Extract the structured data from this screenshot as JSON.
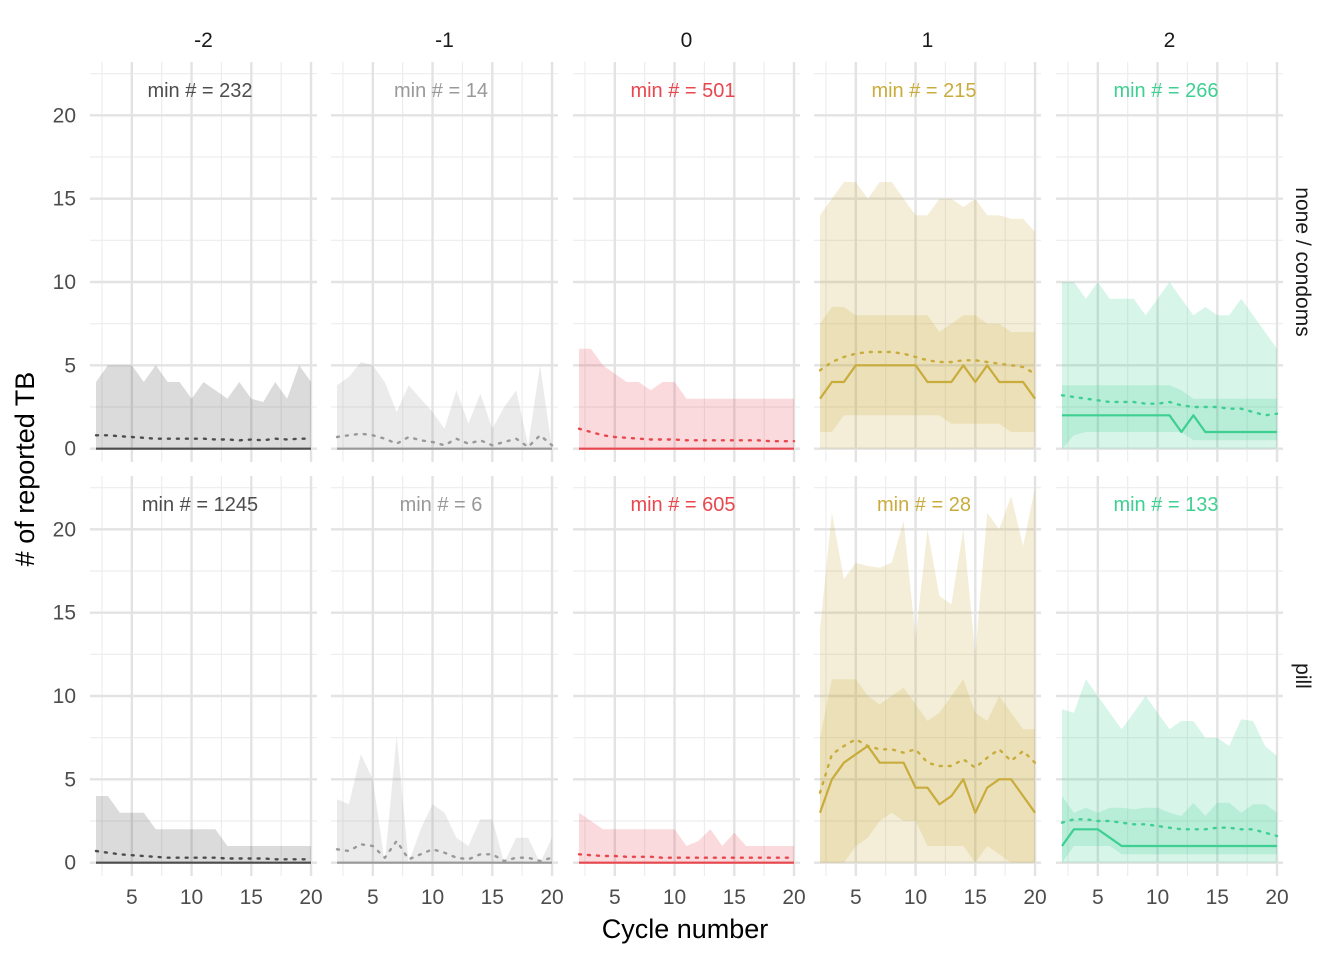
{
  "chart_data": {
    "type": "area",
    "xlabel": "Cycle number",
    "ylabel": "# of reported TB",
    "xlim": [
      1.5,
      20.5
    ],
    "ylim": [
      -0.8,
      23.2
    ],
    "x_ticks": [
      5,
      10,
      15,
      20
    ],
    "y_ticks": [
      0,
      5,
      10,
      15,
      20
    ],
    "grid": true,
    "x": [
      2,
      3,
      4,
      5,
      6,
      7,
      8,
      9,
      10,
      11,
      12,
      13,
      14,
      15,
      16,
      17,
      18,
      19,
      20
    ],
    "col_labels": [
      "-2",
      "-1",
      "0",
      "1",
      "2"
    ],
    "row_labels": [
      "none / condoms",
      "pill"
    ],
    "col_colors": [
      "#4d4d4d",
      "#999999",
      "#e8474e",
      "#c9ac3c",
      "#3ecf92"
    ],
    "panels": [
      {
        "row": 0,
        "col": 0,
        "annotation": "min # = 232",
        "outer_upper": [
          4,
          5,
          5,
          5,
          4,
          5,
          4,
          4,
          3,
          4,
          3.5,
          3,
          4,
          3,
          2.8,
          4,
          3,
          5,
          4
        ],
        "outer_lower": [
          0,
          0,
          0,
          0,
          0,
          0,
          0,
          0,
          0,
          0,
          0,
          0,
          0,
          0,
          0,
          0,
          0,
          0,
          0
        ],
        "inner_upper": [
          0,
          0,
          0,
          0,
          0,
          0,
          0,
          0,
          0,
          0,
          0,
          0,
          0,
          0,
          0,
          0,
          0,
          0,
          0
        ],
        "inner_lower": [
          0,
          0,
          0,
          0,
          0,
          0,
          0,
          0,
          0,
          0,
          0,
          0,
          0,
          0,
          0,
          0,
          0,
          0,
          0
        ],
        "median": [
          0,
          0,
          0,
          0,
          0,
          0,
          0,
          0,
          0,
          0,
          0,
          0,
          0,
          0,
          0,
          0,
          0,
          0,
          0
        ],
        "mean": [
          0.8,
          0.8,
          0.75,
          0.7,
          0.65,
          0.6,
          0.6,
          0.6,
          0.6,
          0.6,
          0.55,
          0.55,
          0.5,
          0.55,
          0.5,
          0.6,
          0.55,
          0.6,
          0.6
        ]
      },
      {
        "row": 0,
        "col": 1,
        "annotation": "min # = 14",
        "outer_upper": [
          3.8,
          4.3,
          5.2,
          5,
          4,
          2.2,
          3.8,
          3,
          2.2,
          1.2,
          3.5,
          1.5,
          3.3,
          1.2,
          2.5,
          3.5,
          0.2,
          5,
          0
        ],
        "outer_lower": [
          0,
          0,
          0,
          0,
          0,
          0,
          0,
          0,
          0,
          0,
          0,
          0,
          0,
          0,
          0,
          0,
          0,
          0,
          0
        ],
        "inner_upper": [
          0,
          0,
          0,
          0,
          0,
          0,
          0,
          0,
          0,
          0,
          0,
          0,
          0,
          0,
          0,
          0,
          0,
          0,
          0
        ],
        "inner_lower": [
          0,
          0,
          0,
          0,
          0,
          0,
          0,
          0,
          0,
          0,
          0,
          0,
          0,
          0,
          0,
          0,
          0,
          0,
          0
        ],
        "median": [
          0,
          0,
          0,
          0,
          0,
          0,
          0,
          0,
          0,
          0,
          0,
          0,
          0,
          0,
          0,
          0,
          0,
          0,
          0
        ],
        "mean": [
          0.7,
          0.8,
          0.9,
          0.8,
          0.6,
          0.3,
          0.7,
          0.5,
          0.4,
          0.2,
          0.6,
          0.3,
          0.5,
          0.2,
          0.4,
          0.6,
          0.1,
          0.8,
          0.2
        ]
      },
      {
        "row": 0,
        "col": 2,
        "annotation": "min # = 501",
        "outer_upper": [
          6,
          6,
          5,
          4.5,
          4,
          4,
          3.5,
          4,
          4,
          3,
          3,
          3,
          3,
          3,
          3,
          3,
          3,
          3,
          3
        ],
        "outer_lower": [
          0,
          0,
          0,
          0,
          0,
          0,
          0,
          0,
          0,
          0,
          0,
          0,
          0,
          0,
          0,
          0,
          0,
          0,
          0
        ],
        "inner_upper": [
          0,
          0,
          0,
          0,
          0,
          0,
          0,
          0,
          0,
          0,
          0,
          0,
          0,
          0,
          0,
          0,
          0,
          0,
          0
        ],
        "inner_lower": [
          0,
          0,
          0,
          0,
          0,
          0,
          0,
          0,
          0,
          0,
          0,
          0,
          0,
          0,
          0,
          0,
          0,
          0,
          0
        ],
        "median": [
          0,
          0,
          0,
          0,
          0,
          0,
          0,
          0,
          0,
          0,
          0,
          0,
          0,
          0,
          0,
          0,
          0,
          0,
          0
        ],
        "mean": [
          1.2,
          1,
          0.8,
          0.7,
          0.65,
          0.6,
          0.55,
          0.55,
          0.55,
          0.5,
          0.5,
          0.5,
          0.5,
          0.5,
          0.5,
          0.5,
          0.45,
          0.45,
          0.45
        ]
      },
      {
        "row": 0,
        "col": 3,
        "annotation": "min # = 215",
        "outer_upper": [
          14,
          15,
          16,
          16,
          15,
          16,
          16,
          15,
          14,
          14,
          15,
          15,
          14.5,
          15,
          14,
          14,
          13.8,
          13.8,
          13
        ],
        "outer_lower": [
          0,
          0,
          0,
          0,
          0,
          0,
          0,
          0,
          0,
          0,
          0,
          0,
          0,
          0,
          0,
          0,
          0,
          0,
          0
        ],
        "inner_upper": [
          7.5,
          8.5,
          8.5,
          8,
          8,
          8,
          8,
          8,
          8,
          8,
          7,
          7.5,
          8,
          8,
          7.5,
          7.5,
          7,
          7,
          7
        ],
        "inner_lower": [
          1,
          1,
          2,
          2,
          2,
          2,
          2,
          2,
          2,
          2,
          2,
          1.5,
          1.5,
          1.5,
          1.5,
          1.5,
          1,
          1,
          1
        ],
        "median": [
          3,
          4,
          4,
          5,
          5,
          5,
          5,
          5,
          5,
          4,
          4,
          4,
          5,
          4,
          5,
          4,
          4,
          4,
          3
        ],
        "mean": [
          4.7,
          5.2,
          5.5,
          5.7,
          5.8,
          5.8,
          5.8,
          5.7,
          5.5,
          5.3,
          5.2,
          5.2,
          5.3,
          5.3,
          5.2,
          5.1,
          5,
          4.9,
          4.5
        ]
      },
      {
        "row": 0,
        "col": 4,
        "annotation": "min # = 266",
        "outer_upper": [
          10,
          10,
          9,
          10,
          9,
          9,
          9,
          8,
          9,
          10,
          9,
          8,
          8.5,
          8,
          8,
          9,
          8,
          7,
          6
        ],
        "outer_lower": [
          0,
          0,
          0,
          0,
          0,
          0,
          0,
          0,
          0,
          0,
          0,
          0,
          0,
          0,
          0,
          0,
          0,
          0,
          0
        ],
        "inner_upper": [
          3.8,
          3.8,
          3.8,
          3.8,
          3.8,
          3.8,
          3.8,
          3.8,
          3.8,
          3.8,
          3.5,
          3,
          3,
          3,
          3,
          3,
          3,
          3,
          3
        ],
        "inner_lower": [
          0,
          0.8,
          1,
          1,
          1,
          1,
          1,
          1,
          1,
          1,
          1,
          0.5,
          0.5,
          0.5,
          0.5,
          0.5,
          0.5,
          0.5,
          0.5
        ],
        "median": [
          2,
          2,
          2,
          2,
          2,
          2,
          2,
          2,
          2,
          2,
          1,
          2,
          1,
          1,
          1,
          1,
          1,
          1,
          1
        ],
        "mean": [
          3.2,
          3.1,
          3,
          2.9,
          2.8,
          2.8,
          2.8,
          2.7,
          2.7,
          2.8,
          2.6,
          2.5,
          2.5,
          2.5,
          2.4,
          2.4,
          2.2,
          2,
          2.1
        ]
      },
      {
        "row": 1,
        "col": 0,
        "annotation": "min # = 1245",
        "outer_upper": [
          4,
          4,
          3,
          3,
          3,
          2,
          2,
          2,
          2,
          2,
          2,
          1,
          1,
          1,
          1,
          1,
          1,
          1,
          1
        ],
        "outer_lower": [
          0,
          0,
          0,
          0,
          0,
          0,
          0,
          0,
          0,
          0,
          0,
          0,
          0,
          0,
          0,
          0,
          0,
          0,
          0
        ],
        "inner_upper": [
          0,
          0,
          0,
          0,
          0,
          0,
          0,
          0,
          0,
          0,
          0,
          0,
          0,
          0,
          0,
          0,
          0,
          0,
          0
        ],
        "inner_lower": [
          0,
          0,
          0,
          0,
          0,
          0,
          0,
          0,
          0,
          0,
          0,
          0,
          0,
          0,
          0,
          0,
          0,
          0,
          0
        ],
        "median": [
          0,
          0,
          0,
          0,
          0,
          0,
          0,
          0,
          0,
          0,
          0,
          0,
          0,
          0,
          0,
          0,
          0,
          0,
          0
        ],
        "mean": [
          0.7,
          0.6,
          0.5,
          0.45,
          0.4,
          0.35,
          0.3,
          0.3,
          0.3,
          0.3,
          0.3,
          0.25,
          0.25,
          0.25,
          0.25,
          0.2,
          0.2,
          0.2,
          0.2
        ]
      },
      {
        "row": 1,
        "col": 1,
        "annotation": "min # = 6",
        "outer_upper": [
          3.8,
          3.5,
          6.5,
          5,
          0,
          7.6,
          0,
          2,
          3.5,
          3,
          1.5,
          1,
          2.6,
          2.6,
          0,
          1.5,
          1.5,
          0,
          1.5
        ],
        "outer_lower": [
          0,
          0,
          0,
          0,
          0,
          0,
          0,
          0,
          0,
          0,
          0,
          0,
          0,
          0,
          0,
          0,
          0,
          0,
          0
        ],
        "inner_upper": [
          0,
          0,
          0,
          0,
          0,
          0,
          0,
          0,
          0,
          0,
          0,
          0,
          0,
          0,
          0,
          0,
          0,
          0,
          0
        ],
        "inner_lower": [
          0,
          0,
          0,
          0,
          0,
          0,
          0,
          0,
          0,
          0,
          0,
          0,
          0,
          0,
          0,
          0,
          0,
          0,
          0
        ],
        "median": [
          0,
          0,
          0,
          0,
          0,
          0,
          0,
          0,
          0,
          0,
          0,
          0,
          0,
          0,
          0,
          0,
          0,
          0,
          0
        ],
        "mean": [
          0.8,
          0.7,
          1.1,
          1,
          0.3,
          1.3,
          0.2,
          0.5,
          0.8,
          0.6,
          0.3,
          0.2,
          0.5,
          0.5,
          0.1,
          0.3,
          0.3,
          0.1,
          0.3
        ]
      },
      {
        "row": 1,
        "col": 2,
        "annotation": "min # = 605",
        "outer_upper": [
          3,
          2.5,
          2,
          2,
          2,
          2,
          2,
          2,
          2,
          1,
          1.3,
          2,
          1,
          1.8,
          1,
          1,
          1,
          1,
          1
        ],
        "outer_lower": [
          0,
          0,
          0,
          0,
          0,
          0,
          0,
          0,
          0,
          0,
          0,
          0,
          0,
          0,
          0,
          0,
          0,
          0,
          0
        ],
        "inner_upper": [
          0,
          0,
          0,
          0,
          0,
          0,
          0,
          0,
          0,
          0,
          0,
          0,
          0,
          0,
          0,
          0,
          0,
          0,
          0
        ],
        "inner_lower": [
          0,
          0,
          0,
          0,
          0,
          0,
          0,
          0,
          0,
          0,
          0,
          0,
          0,
          0,
          0,
          0,
          0,
          0,
          0
        ],
        "median": [
          0,
          0,
          0,
          0,
          0,
          0,
          0,
          0,
          0,
          0,
          0,
          0,
          0,
          0,
          0,
          0,
          0,
          0,
          0
        ],
        "mean": [
          0.5,
          0.45,
          0.4,
          0.4,
          0.35,
          0.35,
          0.35,
          0.3,
          0.3,
          0.3,
          0.3,
          0.3,
          0.3,
          0.3,
          0.3,
          0.3,
          0.3,
          0.3,
          0.3
        ]
      },
      {
        "row": 1,
        "col": 3,
        "annotation": "min # = 28",
        "outer_upper": [
          14,
          21,
          17,
          18,
          17.8,
          17.7,
          18,
          20.5,
          13.5,
          20,
          16,
          15.5,
          20,
          12.5,
          21,
          20,
          22,
          19,
          22.5
        ],
        "outer_lower": [
          0,
          0,
          0,
          0,
          0,
          0,
          0,
          0,
          0,
          0,
          0,
          0,
          0,
          0,
          0,
          0,
          0,
          0,
          0
        ],
        "inner_upper": [
          7.5,
          11,
          11,
          11,
          10,
          9.5,
          10,
          10.5,
          9.5,
          8.5,
          9,
          10,
          11,
          9,
          8.5,
          10,
          9,
          8,
          8
        ],
        "inner_lower": [
          0,
          0,
          0,
          1,
          1.5,
          2.5,
          3,
          2.5,
          2.5,
          1,
          1,
          1,
          1,
          0,
          1,
          0.5,
          0,
          0,
          0
        ],
        "median": [
          3,
          5,
          6,
          6.5,
          7,
          6,
          6,
          6,
          4.5,
          4.5,
          3.5,
          4,
          5,
          3,
          4.5,
          5,
          5,
          4,
          3
        ],
        "mean": [
          4.2,
          6.5,
          7,
          7.4,
          7,
          6.8,
          6.8,
          6.6,
          6.8,
          6,
          5.8,
          5.8,
          6.2,
          5.7,
          6.3,
          6.8,
          6.1,
          6.7,
          6
        ]
      },
      {
        "row": 1,
        "col": 4,
        "annotation": "min # = 133",
        "outer_upper": [
          9.2,
          9,
          11,
          10,
          9,
          8,
          9,
          10,
          9,
          8,
          8.5,
          8.5,
          7.5,
          7.5,
          7,
          8.6,
          8.5,
          7,
          6.4
        ],
        "outer_lower": [
          0,
          0,
          0,
          0,
          0,
          0,
          0,
          0,
          0,
          0,
          0,
          0,
          0,
          0,
          0,
          0,
          0,
          0,
          0
        ],
        "inner_upper": [
          4,
          3,
          3.3,
          3,
          3.3,
          3.3,
          3.2,
          3.3,
          3.3,
          3,
          2.8,
          3.6,
          2.8,
          3.6,
          3.6,
          3,
          3.5,
          3.5,
          3
        ],
        "inner_lower": [
          0,
          1,
          1,
          1,
          1,
          0.5,
          0.5,
          0.5,
          0.5,
          0.5,
          0.5,
          0.5,
          0.5,
          0.5,
          0.5,
          0.5,
          0.5,
          0.5,
          0.5
        ],
        "median": [
          1,
          2,
          2,
          2,
          1.5,
          1,
          1,
          1,
          1,
          1,
          1,
          1,
          1,
          1,
          1,
          1,
          1,
          1,
          1
        ],
        "mean": [
          2.4,
          2.6,
          2.6,
          2.5,
          2.5,
          2.4,
          2.3,
          2.3,
          2.2,
          2.1,
          2,
          2,
          2,
          2.1,
          2.1,
          2,
          2,
          1.8,
          1.6
        ]
      }
    ]
  }
}
